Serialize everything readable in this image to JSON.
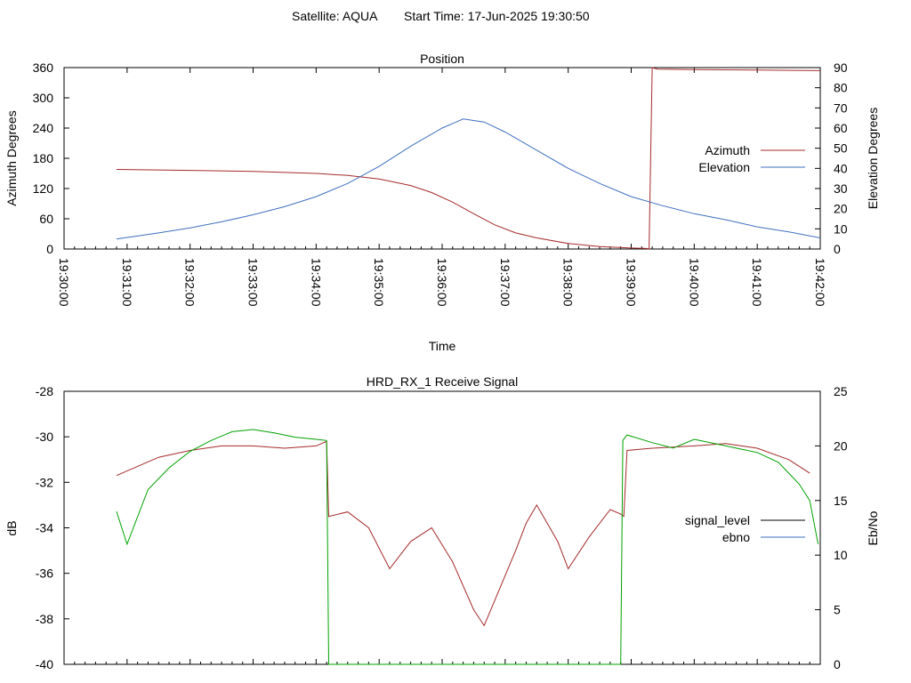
{
  "header": {
    "satellite_label": "Satellite: AQUA",
    "start_label": "Start Time: 17-Jun-2025 19:30:50"
  },
  "chart_data": [
    {
      "type": "line",
      "title": "Position",
      "xlabel": "Time",
      "ylabel": "Azimuth Degrees",
      "y2label": "Elevation Degrees",
      "x_ticks": [
        "19:30:00",
        "19:31:00",
        "19:32:00",
        "19:33:00",
        "19:34:00",
        "19:35:00",
        "19:36:00",
        "19:37:00",
        "19:38:00",
        "19:39:00",
        "19:40:00",
        "19:41:00",
        "19:42:00"
      ],
      "xlim": [
        "19:30:00",
        "19:42:00"
      ],
      "ylim": [
        0,
        360
      ],
      "y_ticks": [
        0,
        60,
        120,
        180,
        240,
        300,
        360
      ],
      "y2lim": [
        0,
        90
      ],
      "y2_ticks": [
        0,
        10,
        20,
        30,
        40,
        50,
        60,
        70,
        80,
        90
      ],
      "legend_position": "right",
      "grid": false,
      "series": [
        {
          "name": "Azimuth",
          "axis": "left",
          "color": "#a52a2a",
          "x": [
            "19:30:50",
            "19:32:00",
            "19:33:00",
            "19:34:00",
            "19:34:30",
            "19:35:00",
            "19:35:30",
            "19:35:50",
            "19:36:10",
            "19:36:30",
            "19:36:50",
            "19:37:10",
            "19:37:30",
            "19:38:00",
            "19:38:30",
            "19:39:00",
            "19:39:15",
            "19:39:17",
            "19:39:20",
            "19:39:25",
            "19:40:00",
            "19:41:00",
            "19:42:00"
          ],
          "values": [
            158,
            156,
            154,
            150,
            146,
            139,
            126,
            112,
            93,
            70,
            48,
            32,
            22,
            11,
            5,
            2,
            1,
            0,
            360,
            357,
            356,
            355,
            354
          ]
        },
        {
          "name": "Elevation",
          "axis": "right",
          "color": "#3f6fbf",
          "x": [
            "19:30:50",
            "19:31:30",
            "19:32:00",
            "19:32:30",
            "19:33:00",
            "19:33:30",
            "19:34:00",
            "19:34:30",
            "19:35:00",
            "19:35:30",
            "19:36:00",
            "19:36:20",
            "19:36:40",
            "19:37:00",
            "19:37:30",
            "19:38:00",
            "19:38:30",
            "19:39:00",
            "19:39:30",
            "19:40:00",
            "19:40:30",
            "19:41:00",
            "19:41:30",
            "19:42:00"
          ],
          "values": [
            5,
            8,
            10.5,
            13.5,
            17,
            21,
            26,
            32.5,
            41,
            51,
            60,
            64.5,
            63,
            58,
            49,
            40,
            32.5,
            26,
            21.5,
            17.5,
            14.5,
            11,
            8.5,
            5.5
          ]
        }
      ]
    },
    {
      "type": "line",
      "title": "HRD_RX_1 Receive Signal",
      "xlabel": "",
      "ylabel": "dB",
      "y2label": "Eb/No",
      "ylim": [
        -40,
        -28
      ],
      "y_ticks": [
        -40,
        -38,
        -36,
        -34,
        -32,
        -30,
        -28
      ],
      "y2lim": [
        0,
        25
      ],
      "y2_ticks": [
        0,
        5,
        10,
        15,
        20,
        25
      ],
      "xlim": [
        "19:30:00",
        "19:42:00"
      ],
      "legend_position": "right",
      "grid": false,
      "series": [
        {
          "name": "signal_level",
          "axis": "left",
          "color": "#a52a2a",
          "x": [
            "19:30:50",
            "19:31:30",
            "19:32:00",
            "19:32:30",
            "19:33:00",
            "19:33:30",
            "19:34:00",
            "19:34:10",
            "19:34:12",
            "19:34:30",
            "19:34:50",
            "19:35:10",
            "19:35:30",
            "19:35:50",
            "19:36:10",
            "19:36:30",
            "19:36:40",
            "19:36:50",
            "19:37:10",
            "19:37:20",
            "19:37:30",
            "19:37:50",
            "19:38:00",
            "19:38:20",
            "19:38:40",
            "19:38:50",
            "19:38:53",
            "19:38:56",
            "19:39:20",
            "19:40:00",
            "19:40:30",
            "19:41:00",
            "19:41:30",
            "19:41:50"
          ],
          "values": [
            -31.7,
            -30.9,
            -30.6,
            -30.4,
            -30.4,
            -30.5,
            -30.4,
            -30.2,
            -33.5,
            -33.3,
            -34.0,
            -35.8,
            -34.6,
            -34.0,
            -35.5,
            -37.6,
            -38.3,
            -37.2,
            -35.0,
            -33.8,
            -33.0,
            -34.6,
            -35.8,
            -34.4,
            -33.2,
            -33.4,
            -33.5,
            -30.6,
            -30.5,
            -30.4,
            -30.3,
            -30.5,
            -31.0,
            -31.6
          ]
        },
        {
          "name": "ebno",
          "axis": "right",
          "color": "#00a000",
          "x": [
            "19:30:50",
            "19:31:00",
            "19:31:20",
            "19:31:40",
            "19:32:00",
            "19:32:20",
            "19:32:40",
            "19:33:00",
            "19:33:20",
            "19:33:40",
            "19:34:00",
            "19:34:10",
            "19:34:12",
            "19:34:20",
            "19:38:50",
            "19:38:52",
            "19:38:56",
            "19:39:20",
            "19:39:40",
            "19:40:00",
            "19:40:20",
            "19:40:40",
            "19:41:00",
            "19:41:20",
            "19:41:40",
            "19:41:50",
            "19:41:58"
          ],
          "values": [
            14,
            11,
            16,
            18,
            19.5,
            20.5,
            21.3,
            21.5,
            21.2,
            20.8,
            20.6,
            20.5,
            0,
            0,
            0,
            20.5,
            21,
            20.3,
            19.8,
            20.6,
            20.2,
            19.8,
            19.4,
            18.5,
            16.5,
            15,
            11
          ]
        }
      ]
    }
  ]
}
